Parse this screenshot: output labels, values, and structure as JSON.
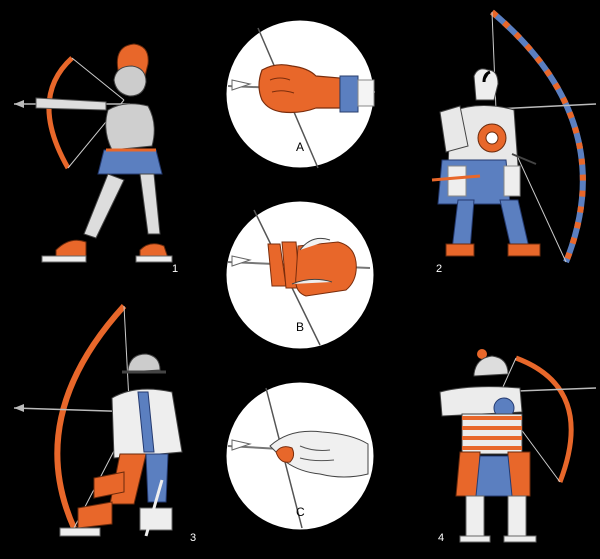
{
  "figures": {
    "one": "1",
    "two": "2",
    "three": "3",
    "four": "4"
  },
  "grips": {
    "a": "A",
    "b": "B",
    "c": "C"
  },
  "colors": {
    "background": "#000000",
    "accent_orange": "#e8672a",
    "accent_blue": "#5b7fc0",
    "line_white": "#ffffff",
    "skin_gray": "#d8d8d8"
  }
}
